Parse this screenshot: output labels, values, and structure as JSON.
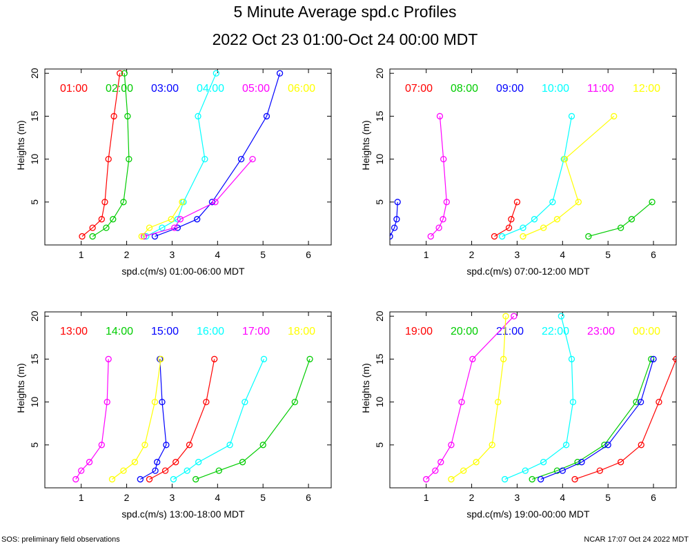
{
  "title": "5 Minute Average spd.c Profiles",
  "subtitle": "2022 Oct 23 01:00-Oct 24 00:00 MDT",
  "footer_left": "SOS: preliminary field observations",
  "footer_right": "NCAR 17:07 Oct 24 2022 MDT",
  "colors": [
    "#ff0000",
    "#00cc00",
    "#0000ff",
    "#00ffff",
    "#ff00ff",
    "#ffff00"
  ],
  "chart_data": [
    {
      "type": "line",
      "xlabel": "spd.c(m/s) 01:00-06:00 MDT",
      "ylabel": "Heights (m)",
      "xlim": [
        0.2,
        6.5
      ],
      "ylim": [
        0,
        20.5
      ],
      "xticks": [
        1,
        2,
        3,
        4,
        5,
        6
      ],
      "yticks": [
        5,
        10,
        15,
        20
      ],
      "series": [
        {
          "name": "01:00",
          "points": [
            [
              1.02,
              1
            ],
            [
              1.25,
              2
            ],
            [
              1.45,
              3
            ],
            [
              1.52,
              5
            ],
            [
              1.6,
              10
            ],
            [
              1.72,
              15
            ],
            [
              1.85,
              20
            ]
          ]
        },
        {
          "name": "02:00",
          "points": [
            [
              1.25,
              1
            ],
            [
              1.55,
              2
            ],
            [
              1.7,
              3
            ],
            [
              1.93,
              5
            ],
            [
              2.05,
              10
            ],
            [
              2.02,
              15
            ],
            [
              1.95,
              20
            ]
          ]
        },
        {
          "name": "03:00",
          "points": [
            [
              2.62,
              1
            ],
            [
              3.12,
              2
            ],
            [
              3.55,
              3
            ],
            [
              3.88,
              5
            ],
            [
              4.52,
              10
            ],
            [
              5.08,
              15
            ],
            [
              5.37,
              20
            ]
          ]
        },
        {
          "name": "04:00",
          "points": [
            [
              2.43,
              1
            ],
            [
              2.78,
              2
            ],
            [
              3.12,
              3
            ],
            [
              3.25,
              5
            ],
            [
              3.72,
              10
            ],
            [
              3.57,
              15
            ],
            [
              3.97,
              20
            ]
          ]
        },
        {
          "name": "05:00",
          "points": [
            [
              2.38,
              1
            ],
            [
              3.05,
              2
            ],
            [
              3.18,
              3
            ],
            [
              3.95,
              5
            ],
            [
              4.77,
              10
            ]
          ]
        },
        {
          "name": "06:00",
          "points": [
            [
              2.33,
              1
            ],
            [
              2.5,
              2
            ],
            [
              2.98,
              3
            ],
            [
              3.22,
              5
            ]
          ]
        }
      ]
    },
    {
      "type": "line",
      "xlabel": "spd.c(m/s) 07:00-12:00 MDT",
      "ylabel": "Heights (m)",
      "xlim": [
        0.2,
        6.5
      ],
      "ylim": [
        0,
        20.5
      ],
      "xticks": [
        1,
        2,
        3,
        4,
        5,
        6
      ],
      "yticks": [
        5,
        10,
        15,
        20
      ],
      "series": [
        {
          "name": "07:00",
          "points": [
            [
              2.5,
              1
            ],
            [
              2.82,
              2
            ],
            [
              2.87,
              3
            ],
            [
              3.0,
              5
            ]
          ]
        },
        {
          "name": "08:00",
          "points": [
            [
              4.57,
              1
            ],
            [
              5.28,
              2
            ],
            [
              5.52,
              3
            ],
            [
              5.97,
              5
            ]
          ]
        },
        {
          "name": "09:00",
          "points": [
            [
              0.2,
              1
            ],
            [
              0.3,
              2
            ],
            [
              0.35,
              3
            ],
            [
              0.37,
              5
            ]
          ]
        },
        {
          "name": "10:00",
          "points": [
            [
              2.67,
              1
            ],
            [
              3.13,
              2
            ],
            [
              3.38,
              3
            ],
            [
              3.78,
              5
            ],
            [
              4.03,
              10
            ],
            [
              4.2,
              15
            ]
          ]
        },
        {
          "name": "11:00",
          "points": [
            [
              1.1,
              1
            ],
            [
              1.28,
              2
            ],
            [
              1.37,
              3
            ],
            [
              1.45,
              5
            ],
            [
              1.38,
              10
            ],
            [
              1.3,
              15
            ]
          ]
        },
        {
          "name": "12:00",
          "points": [
            [
              3.13,
              1
            ],
            [
              3.58,
              2
            ],
            [
              3.88,
              3
            ],
            [
              4.35,
              5
            ],
            [
              4.05,
              10
            ],
            [
              5.13,
              15
            ]
          ]
        }
      ]
    },
    {
      "type": "line",
      "xlabel": "spd.c(m/s) 13:00-18:00 MDT",
      "ylabel": "Heights (m)",
      "xlim": [
        0.2,
        6.5
      ],
      "ylim": [
        0,
        20.5
      ],
      "xticks": [
        1,
        2,
        3,
        4,
        5,
        6
      ],
      "yticks": [
        5,
        10,
        15,
        20
      ],
      "series": [
        {
          "name": "13:00",
          "points": [
            [
              2.5,
              1
            ],
            [
              2.85,
              2
            ],
            [
              3.08,
              3
            ],
            [
              3.38,
              5
            ],
            [
              3.75,
              10
            ],
            [
              3.93,
              15
            ]
          ]
        },
        {
          "name": "14:00",
          "points": [
            [
              3.52,
              1
            ],
            [
              4.03,
              2
            ],
            [
              4.55,
              3
            ],
            [
              5.0,
              5
            ],
            [
              5.7,
              10
            ],
            [
              6.03,
              15
            ]
          ]
        },
        {
          "name": "15:00",
          "points": [
            [
              2.3,
              1
            ],
            [
              2.63,
              2
            ],
            [
              2.67,
              3
            ],
            [
              2.87,
              5
            ],
            [
              2.78,
              10
            ],
            [
              2.73,
              15
            ]
          ]
        },
        {
          "name": "16:00",
          "points": [
            [
              3.03,
              1
            ],
            [
              3.33,
              2
            ],
            [
              3.58,
              3
            ],
            [
              4.27,
              5
            ],
            [
              4.6,
              10
            ],
            [
              5.02,
              15
            ]
          ]
        },
        {
          "name": "17:00",
          "points": [
            [
              0.88,
              1
            ],
            [
              1.0,
              2
            ],
            [
              1.18,
              3
            ],
            [
              1.45,
              5
            ],
            [
              1.57,
              10
            ],
            [
              1.6,
              15
            ]
          ]
        },
        {
          "name": "18:00",
          "points": [
            [
              1.68,
              1
            ],
            [
              1.93,
              2
            ],
            [
              2.18,
              3
            ],
            [
              2.4,
              5
            ],
            [
              2.62,
              10
            ],
            [
              2.75,
              15
            ]
          ]
        }
      ]
    },
    {
      "type": "line",
      "xlabel": "spd.c(m/s) 19:00-00:00 MDT",
      "ylabel": "Heights (m)",
      "xlim": [
        0.2,
        6.5
      ],
      "ylim": [
        0,
        20.5
      ],
      "xticks": [
        1,
        2,
        3,
        4,
        5,
        6
      ],
      "yticks": [
        5,
        10,
        15,
        20
      ],
      "series": [
        {
          "name": "19:00",
          "points": [
            [
              4.27,
              1
            ],
            [
              4.82,
              2
            ],
            [
              5.28,
              3
            ],
            [
              5.73,
              5
            ],
            [
              6.12,
              10
            ],
            [
              6.5,
              15
            ]
          ]
        },
        {
          "name": "20:00",
          "points": [
            [
              3.33,
              1
            ],
            [
              3.88,
              2
            ],
            [
              4.33,
              3
            ],
            [
              4.92,
              5
            ],
            [
              5.62,
              10
            ],
            [
              5.95,
              15
            ]
          ]
        },
        {
          "name": "21:00",
          "points": [
            [
              3.52,
              1
            ],
            [
              4.0,
              2
            ],
            [
              4.42,
              3
            ],
            [
              5.0,
              5
            ],
            [
              5.72,
              10
            ],
            [
              6.0,
              15
            ]
          ]
        },
        {
          "name": "22:00",
          "points": [
            [
              2.73,
              1
            ],
            [
              3.18,
              2
            ],
            [
              3.58,
              3
            ],
            [
              4.08,
              5
            ],
            [
              4.23,
              10
            ],
            [
              4.2,
              15
            ],
            [
              3.97,
              20
            ]
          ]
        },
        {
          "name": "23:00",
          "points": [
            [
              1.0,
              1
            ],
            [
              1.2,
              2
            ],
            [
              1.32,
              3
            ],
            [
              1.55,
              5
            ],
            [
              1.78,
              10
            ],
            [
              2.02,
              15
            ],
            [
              2.93,
              20
            ]
          ]
        },
        {
          "name": "00:00",
          "points": [
            [
              1.55,
              1
            ],
            [
              1.82,
              2
            ],
            [
              2.1,
              3
            ],
            [
              2.45,
              5
            ],
            [
              2.58,
              10
            ],
            [
              2.7,
              15
            ],
            [
              2.75,
              20
            ]
          ]
        }
      ]
    }
  ]
}
